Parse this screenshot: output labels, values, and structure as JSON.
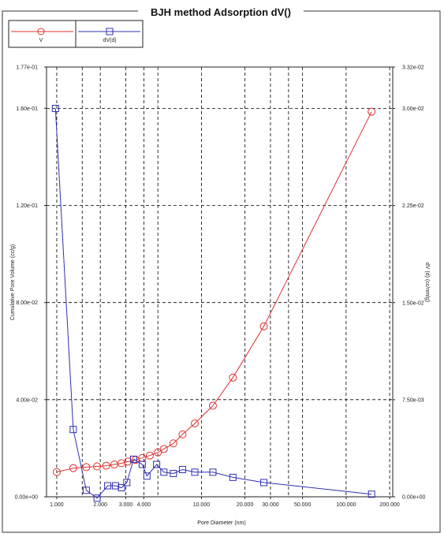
{
  "chart_data": {
    "type": "line",
    "title": "BJH method Adsorption  dV()",
    "xlabel": "Pore Diameter (nm)",
    "ylabel": "Cumulative Pore Volume (cc/g)",
    "y2label": "dV (d) (cc/nm/g)",
    "x_scale": "log",
    "xlim": [
      0.85,
      210
    ],
    "ylim": [
      0,
      0.177
    ],
    "y2lim": [
      0,
      0.0332
    ],
    "grid": true,
    "legend_position": "top-left",
    "x_ticks": [
      {
        "value": 1,
        "label": "1.000"
      },
      {
        "value": 2,
        "label": "2.000"
      },
      {
        "value": 3,
        "label": "3.000"
      },
      {
        "value": 4,
        "label": "4.000"
      },
      {
        "value": 10,
        "label": "10.000"
      },
      {
        "value": 20,
        "label": "20.000"
      },
      {
        "value": 30,
        "label": "30.000"
      },
      {
        "value": 50,
        "label": "50.000"
      },
      {
        "value": 100,
        "label": "100.000"
      },
      {
        "value": 200,
        "label": "200.000"
      }
    ],
    "x_grid_extra": [
      1.5,
      5,
      40
    ],
    "y_ticks": [
      {
        "value": 0,
        "label": "0.00e+00"
      },
      {
        "value": 0.04,
        "label": "4.00e-02"
      },
      {
        "value": 0.08,
        "label": "8.00e-02"
      },
      {
        "value": 0.12,
        "label": "1.20e-01"
      },
      {
        "value": 0.16,
        "label": "1.60e-01"
      },
      {
        "value": 0.177,
        "label": "1.77e-01"
      }
    ],
    "y2_ticks": [
      {
        "value": 0,
        "label": "0.00e+00"
      },
      {
        "value": 0.0075,
        "label": "7.50e-03"
      },
      {
        "value": 0.015,
        "label": "1.50e-02"
      },
      {
        "value": 0.0225,
        "label": "2.25e-02"
      },
      {
        "value": 0.03,
        "label": "3.00e-02"
      },
      {
        "value": 0.0332,
        "label": "3.32e-02"
      }
    ],
    "series": [
      {
        "name": "V",
        "axis": "left",
        "color": "#e03030",
        "marker": "circle",
        "points": [
          [
            1.0,
            0.0102
          ],
          [
            1.3,
            0.0118
          ],
          [
            1.6,
            0.0122
          ],
          [
            1.9,
            0.0125
          ],
          [
            2.2,
            0.0128
          ],
          [
            2.5,
            0.0133
          ],
          [
            2.8,
            0.0138
          ],
          [
            3.1,
            0.0145
          ],
          [
            3.5,
            0.0152
          ],
          [
            3.9,
            0.016
          ],
          [
            4.4,
            0.017
          ],
          [
            5.0,
            0.0183
          ],
          [
            5.5,
            0.0197
          ],
          [
            6.4,
            0.022
          ],
          [
            7.4,
            0.0257
          ],
          [
            9.0,
            0.0302
          ],
          [
            12.0,
            0.0375
          ],
          [
            16.5,
            0.0491
          ],
          [
            27.0,
            0.0702
          ],
          [
            150.0,
            0.1586
          ]
        ]
      },
      {
        "name": "dV(d)",
        "axis": "right",
        "color": "#3030b0",
        "marker": "square",
        "points": [
          [
            0.98,
            0.03
          ],
          [
            1.3,
            0.0052
          ],
          [
            1.6,
            0.0005
          ],
          [
            1.9,
            -0.0001
          ],
          [
            2.25,
            0.00085
          ],
          [
            2.55,
            0.00085
          ],
          [
            2.8,
            0.0007
          ],
          [
            3.05,
            0.0011
          ],
          [
            3.4,
            0.0029
          ],
          [
            3.9,
            0.0025
          ],
          [
            4.2,
            0.0016
          ],
          [
            4.9,
            0.0025
          ],
          [
            5.5,
            0.0019
          ],
          [
            6.4,
            0.0018
          ],
          [
            7.4,
            0.0021
          ],
          [
            9.0,
            0.0019
          ],
          [
            12.0,
            0.0019
          ],
          [
            16.5,
            0.0015
          ],
          [
            27.0,
            0.0011
          ],
          [
            150.0,
            0.0002
          ]
        ]
      }
    ]
  }
}
